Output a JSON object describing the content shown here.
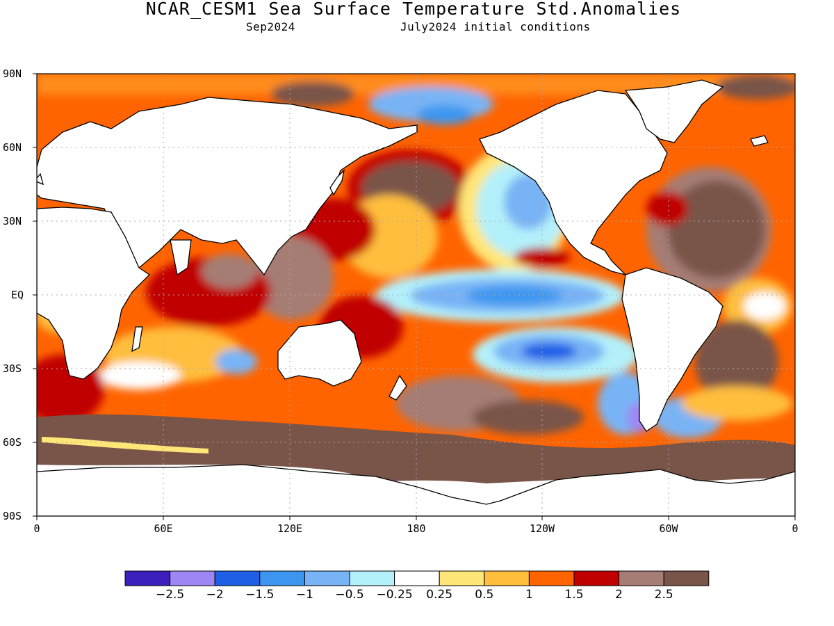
{
  "title": "NCAR_CESM1 Sea Surface Temperature Std.Anomalies",
  "subtitle_left": "Sep2024",
  "subtitle_right": "July2024 initial conditions",
  "lat_labels": [
    "90N",
    "60N",
    "30N",
    "EQ",
    "30S",
    "60S",
    "90S"
  ],
  "lon_labels": [
    "0",
    "60E",
    "120E",
    "180",
    "120W",
    "60W",
    "0"
  ],
  "colorbar": {
    "colors": [
      "#3c1fbd",
      "#9e87f5",
      "#1e5fe6",
      "#3c96f0",
      "#78b4f5",
      "#b4f0fa",
      "#ffffff",
      "#ffe678",
      "#ffbe3c",
      "#ff6400",
      "#c00000",
      "#a57d74",
      "#795448"
    ],
    "labels": [
      "-2.5",
      "-2",
      "-1.5",
      "-1",
      "-0.5",
      "-0.25",
      "0.25",
      "0.5",
      "1",
      "1.5",
      "2",
      "2.5"
    ]
  },
  "colors": {
    "land": "#ffffff",
    "coastline": "#000000",
    "grid": "#aaaaaa"
  }
}
